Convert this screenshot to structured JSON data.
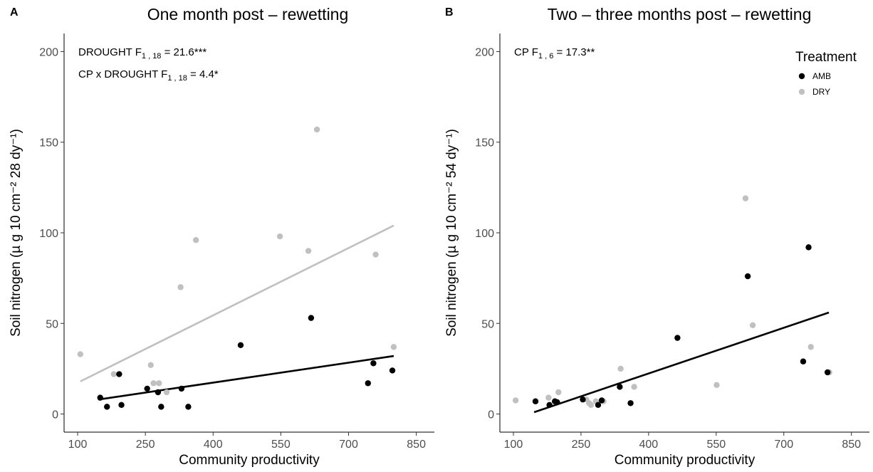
{
  "chart_data": [
    {
      "type": "scatter",
      "panel_label": "A",
      "title": "One month post – rewetting",
      "xlabel": "Community productivity",
      "ylabel": "Soil nitrogen (µ g 10 cm⁻² 28 dy⁻¹)",
      "xlim": [
        70,
        890
      ],
      "ylim": [
        -10,
        210
      ],
      "xticks": [
        100,
        250,
        400,
        550,
        700,
        850
      ],
      "yticks": [
        0,
        50,
        100,
        150,
        200
      ],
      "grid": false,
      "annotations": [
        {
          "label": "DROUGHT",
          "stat": "F",
          "sub": "1 , 18",
          "value": "= 21.6***"
        },
        {
          "label": "CP x DROUGHT",
          "stat": "F",
          "sub": "1 , 18",
          "value": "= 4.4*"
        }
      ],
      "series": [
        {
          "name": "AMB",
          "color": "#000000",
          "x": [
            150,
            165,
            192,
            197,
            254,
            278,
            285,
            330,
            345,
            461,
            617,
            743,
            755,
            797
          ],
          "y": [
            9,
            4,
            22,
            5,
            14,
            12,
            4,
            14,
            4,
            38,
            53,
            17,
            28,
            24
          ],
          "fit": {
            "x": [
              146,
              800
            ],
            "y": [
              8,
              32
            ]
          }
        },
        {
          "name": "DRY",
          "color": "#c0c0c0",
          "x": [
            106,
            180,
            262,
            268,
            280,
            297,
            328,
            362,
            548,
            611,
            630,
            760,
            800
          ],
          "y": [
            33,
            22,
            27,
            17,
            17,
            12,
            70,
            96,
            98,
            90,
            157,
            88,
            37
          ],
          "fit": {
            "x": [
              106,
              800
            ],
            "y": [
              18,
              104
            ]
          }
        }
      ]
    },
    {
      "type": "scatter",
      "panel_label": "B",
      "title": "Two – three months post – rewetting",
      "xlabel": "Community productivity",
      "ylabel": "Soil nitrogen (µ g 10 cm⁻² 54 dy⁻¹)",
      "xlim": [
        70,
        890
      ],
      "ylim": [
        -10,
        210
      ],
      "xticks": [
        100,
        250,
        400,
        550,
        700,
        850
      ],
      "yticks": [
        0,
        50,
        100,
        150,
        200
      ],
      "grid": false,
      "legend": {
        "title": "Treatment",
        "placement": "top-right",
        "entries": [
          "AMB",
          "DRY"
        ]
      },
      "annotations": [
        {
          "label": "CP",
          "stat": "F",
          "sub": "1 , 6",
          "value": "= 17.3**"
        }
      ],
      "series": [
        {
          "name": "AMB",
          "color": "#000000",
          "x": [
            149,
            180,
            192,
            197,
            254,
            288,
            296,
            336,
            360,
            464,
            620,
            743,
            755,
            797
          ],
          "y": [
            7,
            5,
            7,
            6.5,
            8,
            5,
            7.5,
            15,
            6,
            42,
            76,
            29,
            92,
            23
          ],
          "fit": {
            "x": [
              146,
              800
            ],
            "y": [
              1,
              56
            ]
          }
        },
        {
          "name": "DRY",
          "color": "#c0c0c0",
          "x": [
            105,
            178,
            200,
            262,
            268,
            272,
            283,
            300,
            338,
            368,
            551,
            615,
            631,
            760,
            801
          ],
          "y": [
            7.5,
            9,
            12,
            8,
            6,
            5,
            7,
            7,
            25,
            15,
            16,
            119,
            49,
            37,
            23
          ]
        }
      ]
    }
  ]
}
